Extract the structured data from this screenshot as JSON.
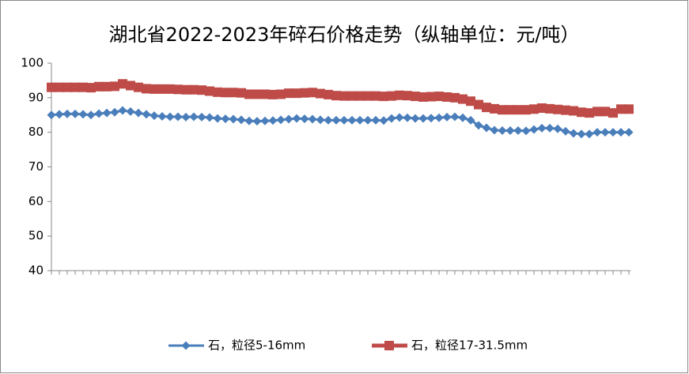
{
  "chart_data": {
    "type": "line",
    "title": "湖北省2022-2023年碎石价格走势（纵轴单位：元/吨）",
    "categories": [
      null,
      null,
      null,
      null,
      null,
      null,
      null,
      null,
      null,
      null,
      null,
      null,
      null,
      null,
      null,
      null,
      null,
      null,
      null,
      null,
      null,
      null,
      null,
      null,
      null,
      null,
      null,
      null,
      null,
      null,
      null,
      null,
      null,
      null,
      null,
      null,
      null,
      null,
      null,
      null,
      null,
      null,
      null,
      null,
      null,
      null,
      null,
      null,
      null,
      null,
      null,
      null,
      null,
      null,
      null,
      null,
      null,
      null,
      null,
      null,
      null,
      null,
      null,
      null,
      null,
      null,
      null,
      null,
      null,
      null,
      null,
      null,
      null,
      null
    ],
    "series": [
      {
        "name": "石，粒径5-16mm",
        "color": "#4a7ebb",
        "marker": "diamond",
        "values": [
          85,
          85.2,
          85.3,
          85.3,
          85.2,
          85,
          85.4,
          85.6,
          85.8,
          86.3,
          86,
          85.6,
          85.2,
          84.8,
          84.6,
          84.5,
          84.5,
          84.4,
          84.5,
          84.4,
          84.3,
          84,
          83.9,
          83.8,
          83.6,
          83.3,
          83.2,
          83.3,
          83.4,
          83.6,
          83.8,
          84,
          83.9,
          83.8,
          83.6,
          83.5,
          83.5,
          83.5,
          83.5,
          83.5,
          83.5,
          83.5,
          83.4,
          84,
          84.3,
          84.2,
          84,
          84,
          84.1,
          84.2,
          84.4,
          84.5,
          84.2,
          83.5,
          82,
          81.3,
          80.6,
          80.5,
          80.5,
          80.5,
          80.4,
          80.8,
          81.2,
          81.2,
          81,
          80.3,
          79.7,
          79.5,
          79.5,
          80,
          80,
          80,
          80,
          80
        ]
      },
      {
        "name": "石，粒径17-31.5mm",
        "color": "#be4b48",
        "marker": "square",
        "values": [
          93,
          93,
          93,
          93,
          93,
          92.9,
          93.2,
          93.2,
          93.3,
          94,
          93.5,
          93,
          92.6,
          92.5,
          92.5,
          92.5,
          92.4,
          92.3,
          92.3,
          92.2,
          91.9,
          91.6,
          91.5,
          91.5,
          91.4,
          91,
          91,
          91,
          90.9,
          91,
          91.3,
          91.3,
          91.4,
          91.5,
          91.2,
          90.9,
          90.6,
          90.5,
          90.5,
          90.5,
          90.5,
          90.5,
          90.4,
          90.5,
          90.7,
          90.6,
          90.4,
          90.2,
          90.3,
          90.4,
          90.2,
          90,
          89.6,
          89,
          88,
          87.2,
          86.8,
          86.5,
          86.5,
          86.5,
          86.5,
          86.7,
          87,
          86.8,
          86.6,
          86.4,
          86.2,
          85.8,
          85.6,
          86,
          86,
          85.6,
          86.7,
          86.7
        ]
      }
    ],
    "ylim": [
      40,
      100
    ],
    "yticks": [
      40,
      50,
      60,
      70,
      80,
      90,
      100
    ],
    "grid": false,
    "legend": "bottom"
  }
}
